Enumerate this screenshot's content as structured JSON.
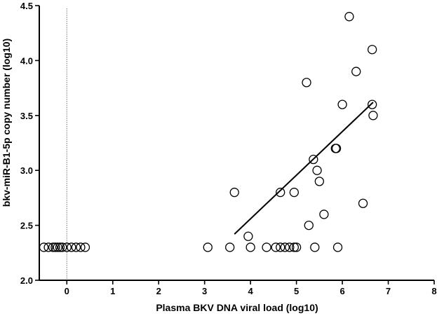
{
  "chart_data": {
    "type": "scatter",
    "xlabel": "Plasma BKV DNA viral load (log10)",
    "ylabel": "bkv-miR-B1-5p copy number (log10)",
    "xlim": [
      -0.6,
      8
    ],
    "ylim": [
      2.0,
      4.5
    ],
    "x_ticks": [
      0,
      1,
      2,
      3,
      4,
      5,
      6,
      7,
      8
    ],
    "y_ticks": [
      2.0,
      2.5,
      3.0,
      3.5,
      4.0,
      4.5
    ],
    "x_tick_labels": [
      "0",
      "1",
      "2",
      "3",
      "4",
      "5",
      "6",
      "7",
      "8"
    ],
    "y_tick_labels": [
      "2.0",
      "2.5",
      "3.0",
      "3.5",
      "4.0",
      "4.5"
    ],
    "grid": false,
    "legend": "none",
    "reference_line": {
      "orientation": "vertical",
      "x": 0,
      "style": "dotted"
    },
    "marker": "open-circle",
    "points": [
      {
        "x": -0.5,
        "y": 2.3
      },
      {
        "x": -0.4,
        "y": 2.3
      },
      {
        "x": -0.3,
        "y": 2.3
      },
      {
        "x": -0.25,
        "y": 2.3
      },
      {
        "x": -0.2,
        "y": 2.3
      },
      {
        "x": -0.15,
        "y": 2.3
      },
      {
        "x": -0.1,
        "y": 2.3
      },
      {
        "x": 0.0,
        "y": 2.3
      },
      {
        "x": 0.1,
        "y": 2.3
      },
      {
        "x": 0.2,
        "y": 2.3
      },
      {
        "x": 0.3,
        "y": 2.3
      },
      {
        "x": 0.4,
        "y": 2.3
      },
      {
        "x": 3.07,
        "y": 2.3
      },
      {
        "x": 3.55,
        "y": 2.3
      },
      {
        "x": 3.65,
        "y": 2.8
      },
      {
        "x": 3.95,
        "y": 2.4
      },
      {
        "x": 4.0,
        "y": 2.3
      },
      {
        "x": 4.35,
        "y": 2.3
      },
      {
        "x": 4.55,
        "y": 2.3
      },
      {
        "x": 4.65,
        "y": 2.8
      },
      {
        "x": 4.65,
        "y": 2.3
      },
      {
        "x": 4.75,
        "y": 2.3
      },
      {
        "x": 4.85,
        "y": 2.3
      },
      {
        "x": 4.95,
        "y": 2.8
      },
      {
        "x": 4.95,
        "y": 2.3
      },
      {
        "x": 5.0,
        "y": 2.3
      },
      {
        "x": 5.22,
        "y": 3.8
      },
      {
        "x": 5.27,
        "y": 2.5
      },
      {
        "x": 5.37,
        "y": 3.1
      },
      {
        "x": 5.4,
        "y": 2.3
      },
      {
        "x": 5.45,
        "y": 3.0
      },
      {
        "x": 5.5,
        "y": 2.9
      },
      {
        "x": 5.6,
        "y": 2.6
      },
      {
        "x": 5.85,
        "y": 3.2
      },
      {
        "x": 5.87,
        "y": 3.2
      },
      {
        "x": 5.9,
        "y": 2.3
      },
      {
        "x": 6.0,
        "y": 3.6
      },
      {
        "x": 6.15,
        "y": 4.4
      },
      {
        "x": 6.3,
        "y": 3.9
      },
      {
        "x": 6.45,
        "y": 2.7
      },
      {
        "x": 6.65,
        "y": 4.1
      },
      {
        "x": 6.65,
        "y": 3.6
      },
      {
        "x": 6.67,
        "y": 3.5
      }
    ],
    "fit_line": {
      "x": [
        3.65,
        6.67
      ],
      "y": [
        2.42,
        3.62
      ]
    }
  }
}
